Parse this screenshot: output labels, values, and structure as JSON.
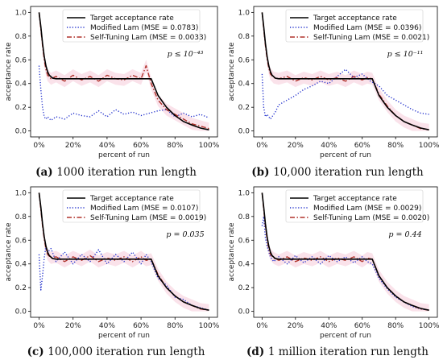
{
  "chart_data": [
    {
      "type": "line",
      "id": "a",
      "caption_letter": "(a)",
      "caption_text": "1000 iteration run length",
      "ylabel": "acceptance rate",
      "xlabel": "percent of run",
      "xticks": [
        "0%",
        "20%",
        "40%",
        "60%",
        "80%",
        "100%"
      ],
      "yticks": [
        "0.0",
        "0.2",
        "0.4",
        "0.6",
        "0.8",
        "1.0"
      ],
      "xlim": [
        0,
        100
      ],
      "ylim": [
        0,
        1
      ],
      "annotation": "p ≤ 10⁻⁴³",
      "series": [
        {
          "name": "Target acceptance rate",
          "color": "#000000",
          "style": "solid",
          "x": [
            0,
            1,
            2,
            3,
            4,
            5,
            6,
            8,
            10,
            15,
            20,
            30,
            40,
            50,
            60,
            66,
            70,
            75,
            80,
            85,
            90,
            95,
            100
          ],
          "y": [
            1.0,
            0.88,
            0.74,
            0.63,
            0.55,
            0.5,
            0.47,
            0.445,
            0.44,
            0.44,
            0.44,
            0.44,
            0.44,
            0.44,
            0.44,
            0.44,
            0.3,
            0.2,
            0.13,
            0.08,
            0.05,
            0.025,
            0.01
          ]
        },
        {
          "name": "Modified Lam (MSE = 0.0783)",
          "color": "#1f2ecc",
          "style": "dotted",
          "x": [
            0,
            1,
            2,
            3,
            4,
            5,
            7,
            10,
            15,
            20,
            25,
            30,
            35,
            40,
            45,
            50,
            55,
            60,
            65,
            70,
            75,
            80,
            85,
            90,
            95,
            100
          ],
          "y": [
            0.55,
            0.35,
            0.2,
            0.12,
            0.1,
            0.12,
            0.09,
            0.12,
            0.1,
            0.15,
            0.13,
            0.12,
            0.17,
            0.12,
            0.18,
            0.14,
            0.16,
            0.13,
            0.15,
            0.17,
            0.18,
            0.12,
            0.15,
            0.12,
            0.14,
            0.11
          ]
        },
        {
          "name": "Self-Tuning Lam (MSE = 0.0033)",
          "color": "#b0322b",
          "style": "dashed",
          "x": [
            0,
            1,
            2,
            3,
            4,
            5,
            7,
            10,
            15,
            20,
            25,
            30,
            35,
            40,
            45,
            50,
            55,
            60,
            63,
            66,
            70,
            75,
            80,
            85,
            90,
            95,
            100
          ],
          "y": [
            1.0,
            0.86,
            0.72,
            0.6,
            0.52,
            0.47,
            0.44,
            0.46,
            0.42,
            0.47,
            0.43,
            0.46,
            0.42,
            0.47,
            0.44,
            0.43,
            0.47,
            0.44,
            0.55,
            0.4,
            0.26,
            0.18,
            0.14,
            0.1,
            0.06,
            0.04,
            0.02
          ]
        }
      ]
    },
    {
      "type": "line",
      "id": "b",
      "caption_letter": "(b)",
      "caption_text": "10,000 iteration run length",
      "ylabel": "acceptance rate",
      "xlabel": "percent of run",
      "xticks": [
        "0%",
        "20%",
        "40%",
        "60%",
        "80%",
        "100%"
      ],
      "yticks": [
        "0.0",
        "0.2",
        "0.4",
        "0.6",
        "0.8",
        "1.0"
      ],
      "xlim": [
        0,
        100
      ],
      "ylim": [
        0,
        1
      ],
      "annotation": "p ≤ 10⁻¹¹",
      "series": [
        {
          "name": "Target acceptance rate",
          "color": "#000000",
          "style": "solid",
          "x": [
            0,
            1,
            2,
            3,
            4,
            5,
            6,
            8,
            10,
            15,
            20,
            30,
            40,
            50,
            60,
            66,
            70,
            75,
            80,
            85,
            90,
            95,
            100
          ],
          "y": [
            1.0,
            0.88,
            0.74,
            0.63,
            0.55,
            0.5,
            0.47,
            0.445,
            0.44,
            0.44,
            0.44,
            0.44,
            0.44,
            0.44,
            0.44,
            0.44,
            0.3,
            0.2,
            0.13,
            0.08,
            0.05,
            0.025,
            0.01
          ]
        },
        {
          "name": "Modified Lam (MSE = 0.0396)",
          "color": "#1f2ecc",
          "style": "dotted",
          "x": [
            0,
            1,
            2,
            3,
            5,
            8,
            10,
            15,
            20,
            25,
            30,
            35,
            40,
            45,
            50,
            55,
            60,
            65,
            70,
            75,
            80,
            85,
            90,
            95,
            100
          ],
          "y": [
            0.48,
            0.2,
            0.12,
            0.14,
            0.1,
            0.16,
            0.22,
            0.26,
            0.3,
            0.35,
            0.38,
            0.42,
            0.4,
            0.46,
            0.52,
            0.45,
            0.48,
            0.42,
            0.38,
            0.3,
            0.26,
            0.22,
            0.18,
            0.15,
            0.14
          ]
        },
        {
          "name": "Self-Tuning Lam (MSE = 0.0021)",
          "color": "#b0322b",
          "style": "dashed",
          "x": [
            0,
            1,
            2,
            3,
            4,
            5,
            7,
            10,
            15,
            20,
            25,
            30,
            35,
            40,
            45,
            50,
            55,
            60,
            63,
            66,
            70,
            75,
            80,
            85,
            90,
            95,
            100
          ],
          "y": [
            1.0,
            0.86,
            0.72,
            0.61,
            0.53,
            0.48,
            0.45,
            0.44,
            0.46,
            0.42,
            0.45,
            0.43,
            0.46,
            0.43,
            0.45,
            0.42,
            0.46,
            0.43,
            0.45,
            0.44,
            0.31,
            0.21,
            0.13,
            0.08,
            0.05,
            0.02,
            0.01
          ]
        }
      ]
    },
    {
      "type": "line",
      "id": "c",
      "caption_letter": "(c)",
      "caption_text": "100,000 iteration run length",
      "ylabel": "acceptance rate",
      "xlabel": "percent of run",
      "xticks": [
        "0%",
        "20%",
        "40%",
        "60%",
        "80%",
        "100%"
      ],
      "yticks": [
        "0.0",
        "0.2",
        "0.4",
        "0.6",
        "0.8",
        "1.0"
      ],
      "xlim": [
        0,
        100
      ],
      "ylim": [
        0,
        1
      ],
      "annotation": "p = 0.035",
      "series": [
        {
          "name": "Target acceptance rate",
          "color": "#000000",
          "style": "solid",
          "x": [
            0,
            1,
            2,
            3,
            4,
            5,
            6,
            8,
            10,
            15,
            20,
            30,
            40,
            50,
            60,
            66,
            70,
            75,
            80,
            85,
            90,
            95,
            100
          ],
          "y": [
            1.0,
            0.88,
            0.74,
            0.63,
            0.55,
            0.5,
            0.47,
            0.445,
            0.44,
            0.44,
            0.44,
            0.44,
            0.44,
            0.44,
            0.44,
            0.44,
            0.3,
            0.2,
            0.13,
            0.08,
            0.05,
            0.025,
            0.01
          ]
        },
        {
          "name": "Modified Lam (MSE = 0.0107)",
          "color": "#1f2ecc",
          "style": "dotted",
          "x": [
            0,
            1,
            2,
            3,
            4,
            5,
            7,
            10,
            15,
            20,
            25,
            30,
            35,
            40,
            45,
            50,
            55,
            60,
            63,
            66,
            70,
            75,
            80,
            85,
            90,
            95,
            100
          ],
          "y": [
            0.48,
            0.18,
            0.3,
            0.45,
            0.55,
            0.5,
            0.53,
            0.42,
            0.5,
            0.4,
            0.48,
            0.42,
            0.52,
            0.4,
            0.48,
            0.42,
            0.5,
            0.4,
            0.48,
            0.42,
            0.28,
            0.22,
            0.12,
            0.1,
            0.05,
            0.03,
            0.01
          ]
        },
        {
          "name": "Self-Tuning Lam (MSE = 0.0019)",
          "color": "#b0322b",
          "style": "dashed",
          "x": [
            0,
            1,
            2,
            3,
            4,
            5,
            7,
            10,
            15,
            20,
            25,
            30,
            35,
            40,
            45,
            50,
            55,
            60,
            63,
            66,
            70,
            75,
            80,
            85,
            90,
            95,
            100
          ],
          "y": [
            1.0,
            0.86,
            0.72,
            0.61,
            0.53,
            0.48,
            0.45,
            0.46,
            0.42,
            0.46,
            0.43,
            0.47,
            0.42,
            0.45,
            0.43,
            0.46,
            0.42,
            0.46,
            0.43,
            0.44,
            0.31,
            0.2,
            0.13,
            0.08,
            0.05,
            0.02,
            0.01
          ]
        }
      ]
    },
    {
      "type": "line",
      "id": "d",
      "caption_letter": "(d)",
      "caption_text": "1 million iteration run length",
      "ylabel": "acceptance rate",
      "xlabel": "percent of run",
      "xticks": [
        "0%",
        "20%",
        "40%",
        "60%",
        "80%",
        "100%"
      ],
      "yticks": [
        "0.0",
        "0.2",
        "0.4",
        "0.6",
        "0.8",
        "1.0"
      ],
      "xlim": [
        0,
        100
      ],
      "ylim": [
        0,
        1
      ],
      "annotation": "p = 0.44",
      "series": [
        {
          "name": "Target acceptance rate",
          "color": "#000000",
          "style": "solid",
          "x": [
            0,
            1,
            2,
            3,
            4,
            5,
            6,
            8,
            10,
            15,
            20,
            30,
            40,
            50,
            60,
            66,
            70,
            75,
            80,
            85,
            90,
            95,
            100
          ],
          "y": [
            1.0,
            0.88,
            0.74,
            0.63,
            0.55,
            0.5,
            0.47,
            0.445,
            0.44,
            0.44,
            0.44,
            0.44,
            0.44,
            0.44,
            0.44,
            0.44,
            0.3,
            0.2,
            0.13,
            0.08,
            0.05,
            0.025,
            0.01
          ]
        },
        {
          "name": "Modified Lam (MSE = 0.0029)",
          "color": "#1f2ecc",
          "style": "dotted",
          "x": [
            0,
            1,
            2,
            3,
            4,
            5,
            7,
            10,
            15,
            20,
            25,
            30,
            35,
            40,
            45,
            50,
            55,
            60,
            63,
            66,
            70,
            75,
            80,
            85,
            90,
            95,
            100
          ],
          "y": [
            0.72,
            0.8,
            0.62,
            0.55,
            0.5,
            0.46,
            0.42,
            0.46,
            0.4,
            0.47,
            0.41,
            0.46,
            0.4,
            0.47,
            0.42,
            0.46,
            0.41,
            0.46,
            0.42,
            0.4,
            0.28,
            0.19,
            0.12,
            0.08,
            0.04,
            0.02,
            0.01
          ]
        },
        {
          "name": "Self-Tuning Lam (MSE = 0.0020)",
          "color": "#b0322b",
          "style": "dashed",
          "x": [
            0,
            1,
            2,
            3,
            4,
            5,
            7,
            10,
            15,
            20,
            25,
            30,
            35,
            40,
            45,
            50,
            55,
            60,
            63,
            66,
            70,
            75,
            80,
            85,
            90,
            95,
            100
          ],
          "y": [
            1.0,
            0.86,
            0.72,
            0.61,
            0.53,
            0.48,
            0.45,
            0.43,
            0.46,
            0.42,
            0.45,
            0.43,
            0.46,
            0.42,
            0.45,
            0.43,
            0.46,
            0.42,
            0.45,
            0.44,
            0.3,
            0.2,
            0.13,
            0.08,
            0.05,
            0.02,
            0.01
          ]
        }
      ]
    }
  ]
}
